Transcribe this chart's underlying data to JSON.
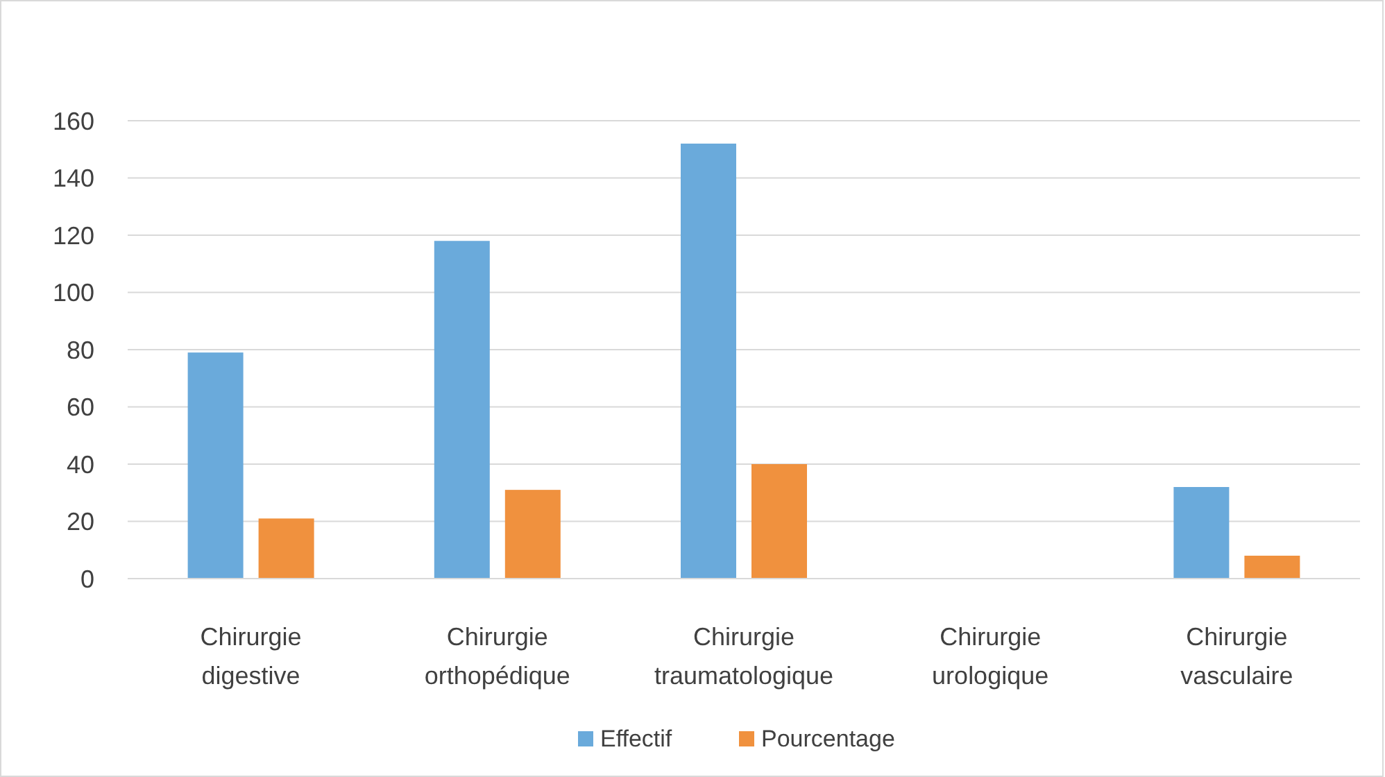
{
  "chart_data": {
    "type": "bar",
    "categories": [
      "Chirurgie\ndigestive",
      "Chirurgie\northopédique",
      "Chirurgie\ntraumatologique",
      "Chirurgie\nurologique",
      "Chirurgie\nvasculaire"
    ],
    "series": [
      {
        "name": "Effectif",
        "color": "#6aaadb",
        "values": [
          79,
          118,
          152,
          0,
          32
        ]
      },
      {
        "name": "Pourcentage",
        "color": "#f0913e",
        "values": [
          21,
          31,
          40,
          0,
          8
        ]
      }
    ],
    "ylim": [
      0,
      160
    ],
    "yticks": [
      0,
      20,
      40,
      60,
      80,
      100,
      120,
      140,
      160
    ],
    "grid": "y",
    "legend": "bottom"
  }
}
